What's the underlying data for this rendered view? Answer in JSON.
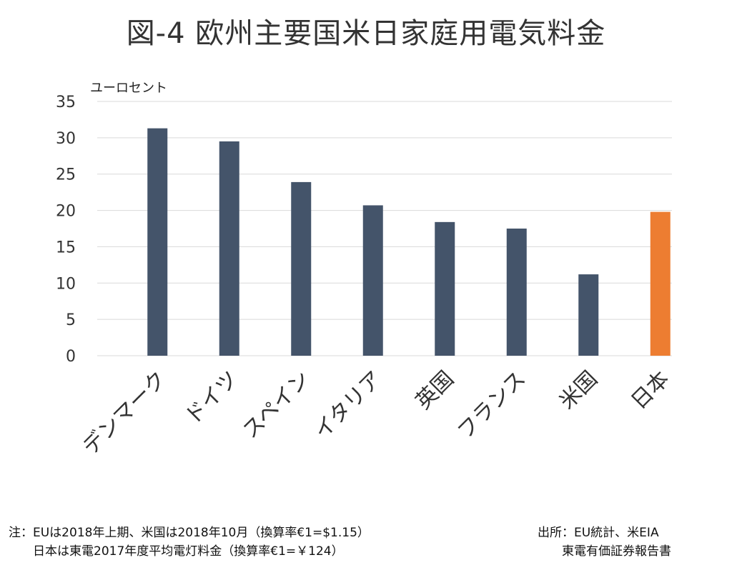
{
  "chart_data": {
    "type": "bar",
    "title": "図-4 欧州主要国米日家庭用電気料金",
    "unit_label": "ユーロセント",
    "xlabel": "",
    "ylabel": "",
    "ylim": [
      0,
      35
    ],
    "yticks": [
      0,
      5,
      10,
      15,
      20,
      25,
      30,
      35
    ],
    "grid": true,
    "categories": [
      "デンマーク",
      "ドイツ",
      "スペイン",
      "イタリア",
      "英国",
      "フランス",
      "米国",
      "日本"
    ],
    "values": [
      31.3,
      29.5,
      23.9,
      20.7,
      18.4,
      17.5,
      11.2,
      19.8
    ],
    "bar_colors": [
      "#44546a",
      "#44546a",
      "#44546a",
      "#44546a",
      "#44546a",
      "#44546a",
      "#44546a",
      "#ed7d31"
    ]
  },
  "notes": {
    "left_line1": "注：EUは2018年上期、米国は2018年10月（換算率€1=$1.15）",
    "left_line2": "　　日本は東電2017年度平均電灯料金（換算率€1=￥124）",
    "right_line1": "出所：EU統計、米EIA",
    "right_line2": "　　東電有価証券報告書"
  },
  "colors": {
    "grid": "#d9d9d9",
    "text": "#333333"
  }
}
